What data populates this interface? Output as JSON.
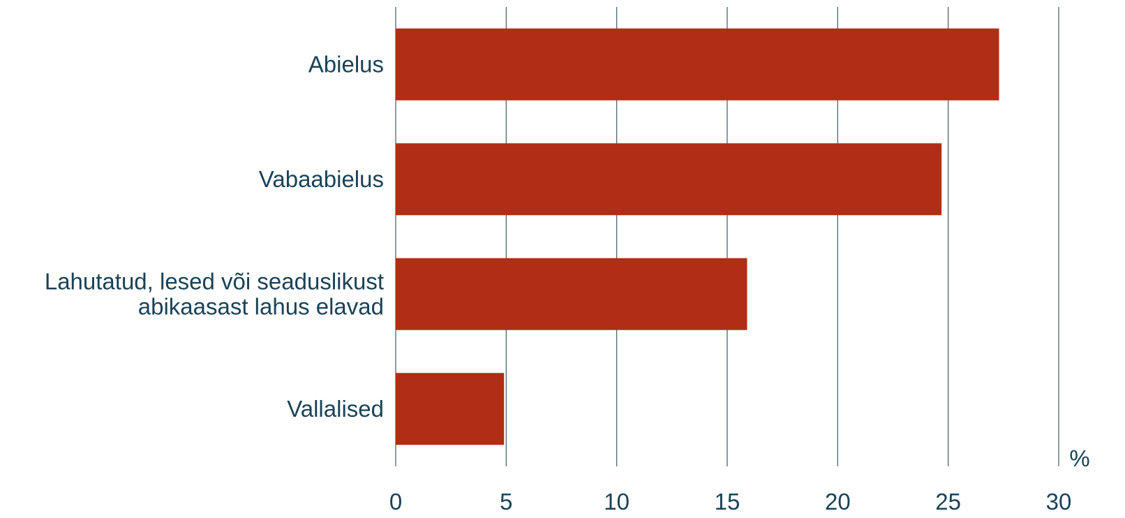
{
  "chart_data": {
    "type": "bar",
    "orientation": "horizontal",
    "categories": [
      [
        "Abielus"
      ],
      [
        "Vabaabielus"
      ],
      [
        "Lahutatud, lesed või seaduslikust",
        "abikaasast lahus elavad"
      ],
      [
        "Vallalised"
      ]
    ],
    "values": [
      27.3,
      24.7,
      15.9,
      4.9
    ],
    "xlim": [
      0,
      30
    ],
    "xticks": [
      0,
      5,
      10,
      15,
      20,
      25,
      30
    ],
    "x_unit": "%",
    "grid": "vertical",
    "bar_color": "#b02e16",
    "text_color": "#1b4257",
    "grid_color": "#3d5a6c"
  }
}
